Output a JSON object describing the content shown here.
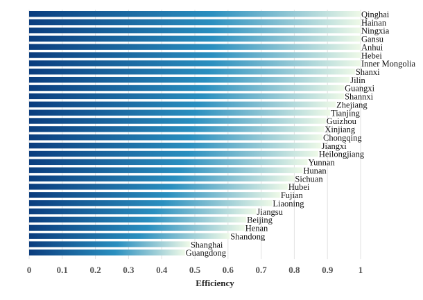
{
  "chart_data": {
    "type": "bar",
    "orientation": "horizontal",
    "title": "",
    "xlabel": "Efficiency",
    "ylabel": "",
    "xlim": [
      0,
      1.05
    ],
    "xticks": [
      0,
      0.1,
      0.2,
      0.3,
      0.4,
      0.5,
      0.6,
      0.7,
      0.8,
      0.9,
      1
    ],
    "xtick_labels": [
      "0",
      "0.1",
      "0.2",
      "0.3",
      "0.4",
      "0.5",
      "0.6",
      "0.7",
      "0.8",
      "0.9",
      "1"
    ],
    "grid": "vertical",
    "colors": {
      "bar_start": "#0b3d7e",
      "bar_mid": "#2a8fbf",
      "bar_end": "#eef9e7"
    },
    "categories": [
      "Qinghai",
      "Hainan",
      "Ningxia",
      "Gansu",
      "Anhui",
      "Hebei",
      "Inner Mongolia",
      "Shanxi",
      "Jilin",
      "Guangxi",
      "Shannxi",
      "Zhejiang",
      "Tianjing",
      "Guizhou",
      "Xinjiang",
      "Chongqing",
      "Jiangxi",
      "Heilongjiang",
      "Yunnan",
      "Hunan",
      "Sichuan",
      "Hubei",
      "Fujian",
      "Liaoning",
      "Jiangsu",
      "Beijing",
      "Henan",
      "Shandong",
      "Shanghai",
      "Guangdong"
    ],
    "values": [
      1.0,
      1.0,
      1.0,
      1.0,
      1.0,
      1.0,
      1.0,
      0.983,
      0.967,
      0.95,
      0.95,
      0.925,
      0.908,
      0.895,
      0.89,
      0.885,
      0.88,
      0.872,
      0.84,
      0.825,
      0.8,
      0.78,
      0.757,
      0.733,
      0.685,
      0.655,
      0.65,
      0.605,
      0.485,
      0.47
    ]
  }
}
